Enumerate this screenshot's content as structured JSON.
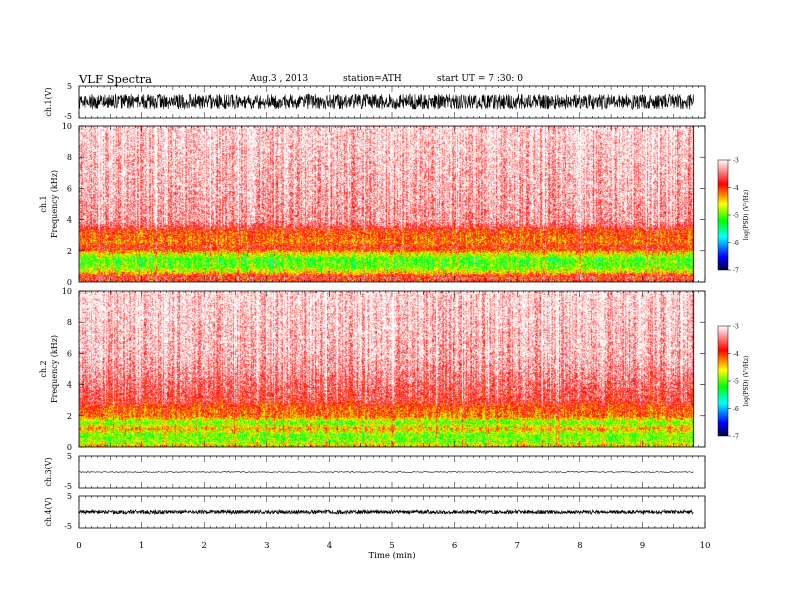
{
  "header": {
    "title": "VLF  Spectra",
    "date": "Aug.3  , 2013",
    "station": "station=ATH",
    "start_ut": "start  UT  =    7  :30: 0"
  },
  "chart_data": [
    {
      "id": "ch1_wave",
      "type": "line",
      "ylabel": "ch.1(V)",
      "ylim": [
        -5,
        5
      ],
      "ytick_labels": [
        "5",
        "-5"
      ],
      "xlim": [
        0,
        10
      ],
      "data_end_min": 9.82,
      "amplitude_v": [
        -2.3,
        2.5
      ]
    },
    {
      "id": "ch1_spectrogram",
      "type": "heatmap",
      "ylabel": "ch.1\nFrequency (kHz)",
      "ylim": [
        0,
        10
      ],
      "ytick_labels": [
        "0",
        "2",
        "4",
        "6",
        "8",
        "10"
      ],
      "xlim": [
        0,
        10
      ],
      "data_end_min": 9.82,
      "colorbar": {
        "label": "log(PSD) (V²/Hz)",
        "range": [
          -7,
          -3
        ],
        "tick_labels": [
          "-3",
          "-4",
          "-5",
          "-6",
          "-7"
        ]
      },
      "band_profile_khz_logpsd": [
        [
          0.0,
          -4.2
        ],
        [
          0.3,
          -3.6
        ],
        [
          0.6,
          -4.4
        ],
        [
          1.0,
          -5.0
        ],
        [
          1.5,
          -5.1
        ],
        [
          1.9,
          -4.5
        ],
        [
          2.2,
          -3.8
        ],
        [
          2.6,
          -4.2
        ],
        [
          3.2,
          -4.05
        ],
        [
          3.7,
          -3.5
        ],
        [
          4.0,
          -3.35
        ],
        [
          5.0,
          -3.3
        ],
        [
          6.0,
          -3.25
        ],
        [
          10.0,
          -3.1
        ]
      ]
    },
    {
      "id": "ch2_spectrogram",
      "type": "heatmap",
      "ylabel": "ch.2\nFrequency (kHz)",
      "ylim": [
        0,
        10
      ],
      "ytick_labels": [
        "0",
        "2",
        "4",
        "6",
        "8",
        "10"
      ],
      "xlim": [
        0,
        10
      ],
      "data_end_min": 9.82,
      "colorbar": {
        "label": "log(PSD) (V²/Hz)",
        "range": [
          -7,
          -3
        ],
        "tick_labels": [
          "-3",
          "-4",
          "-5",
          "-6",
          "-7"
        ]
      },
      "band_profile_khz_logpsd": [
        [
          0.0,
          -4.4
        ],
        [
          0.4,
          -4.9
        ],
        [
          0.8,
          -5.0
        ],
        [
          1.2,
          -4.4
        ],
        [
          1.6,
          -5.0
        ],
        [
          2.0,
          -4.2
        ],
        [
          2.5,
          -4.1
        ],
        [
          3.0,
          -3.7
        ],
        [
          3.6,
          -3.6
        ],
        [
          4.2,
          -3.5
        ],
        [
          5.0,
          -3.35
        ],
        [
          6.0,
          -3.25
        ],
        [
          10.0,
          -3.1
        ]
      ]
    },
    {
      "id": "ch3_wave",
      "type": "line",
      "ylabel": "ch.3(V)",
      "ylim": [
        -5,
        5
      ],
      "ytick_labels": [
        "5",
        "-5"
      ],
      "xlim": [
        0,
        10
      ],
      "data_end_min": 9.82,
      "amplitude_v": [
        -0.15,
        0.15
      ]
    },
    {
      "id": "ch4_wave",
      "type": "line",
      "ylabel": "ch.4(V)",
      "ylim": [
        -5,
        5
      ],
      "ytick_labels": [
        "5",
        "-5"
      ],
      "xlim": [
        0,
        10
      ],
      "data_end_min": 9.82,
      "amplitude_v": [
        -0.6,
        0.6
      ],
      "xlabel": "Time  (min)",
      "xtick_labels": [
        "0",
        "1",
        "2",
        "3",
        "4",
        "5",
        "6",
        "7",
        "8",
        "9",
        "10"
      ]
    }
  ],
  "colors": {
    "axis": "#000000",
    "colormap": [
      "#000040",
      "#0000ff",
      "#00ffff",
      "#00ff00",
      "#ffff00",
      "#ff0000",
      "#ffffff"
    ]
  }
}
